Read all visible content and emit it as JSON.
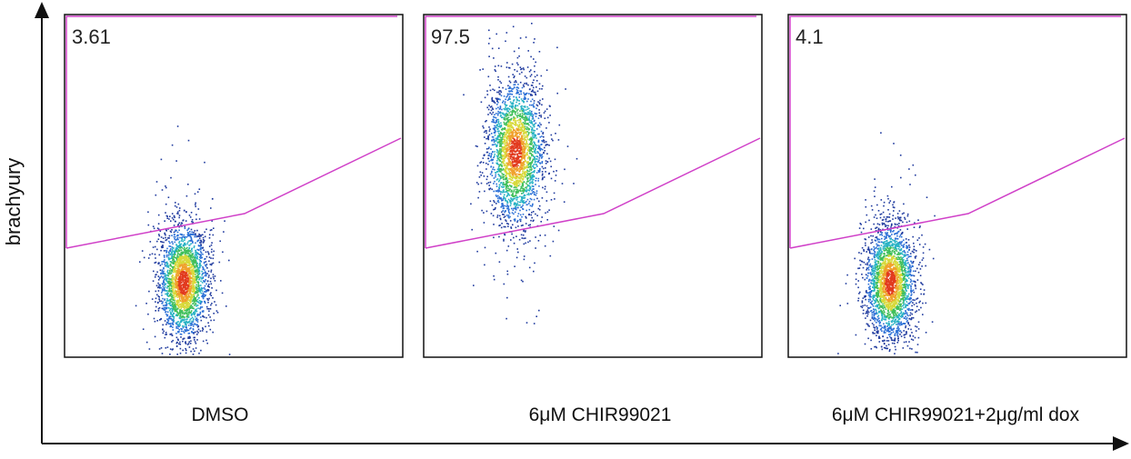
{
  "chart_data": {
    "type": "scatter",
    "density_colors": [
      "#1f3a9e",
      "#2a6fd6",
      "#27b2c4",
      "#3fbf5a",
      "#d7d93a",
      "#f0a12c",
      "#e23b1f"
    ],
    "gate_color": "#d040c8",
    "y_axis_label": "brachyury",
    "x_axis_label": "",
    "panels": [
      {
        "condition": "DMSO",
        "gate_percent": "3.61",
        "cluster_center": [
          0.35,
          0.22
        ],
        "cluster_spread": [
          0.035,
          0.08
        ]
      },
      {
        "condition": "6μM CHIR99021",
        "gate_percent": "97.5",
        "cluster_center": [
          0.27,
          0.6
        ],
        "cluster_spread": [
          0.04,
          0.1
        ]
      },
      {
        "condition": "6μM CHIR99021+2μg/ml dox",
        "gate_percent": "4.1",
        "cluster_center": [
          0.3,
          0.22
        ],
        "cluster_spread": [
          0.035,
          0.08
        ]
      }
    ]
  }
}
